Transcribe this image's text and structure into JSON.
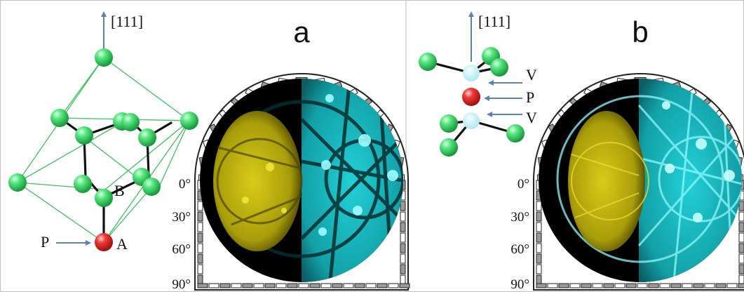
{
  "panel_a": {
    "letter": "a",
    "direction": "[111]",
    "labels": {
      "b": "B",
      "a": "A",
      "p": "P"
    },
    "angles": [
      "0°",
      "30°",
      "60°",
      "90°"
    ]
  },
  "panel_b": {
    "letter": "b",
    "direction": "[111]",
    "labels": {
      "v_top": "V",
      "p": "P",
      "v_bottom": "V"
    },
    "angles": [
      "0°",
      "30°",
      "60°",
      "90°"
    ]
  },
  "colors": {
    "atom_green": "#4fe07a",
    "atom_red": "#ee3b3b",
    "vacancy": "#bfeff5",
    "arrow": "#5a82b8",
    "pattern_yellow": "#c8be10",
    "pattern_cyan": "#19d6dc",
    "pattern_background": "#000000"
  }
}
